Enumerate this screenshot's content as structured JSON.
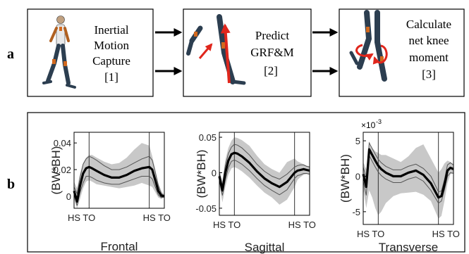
{
  "panel_a": {
    "label": "a",
    "steps": [
      {
        "lines": [
          "Inertial",
          "Motion",
          "Capture",
          "[1]"
        ]
      },
      {
        "lines": [
          "Predict",
          "GRF&M",
          "[2]"
        ]
      },
      {
        "lines": [
          "Calculate",
          "net knee",
          "moment",
          "[3]"
        ]
      }
    ]
  },
  "panel_b": {
    "label": "b",
    "ylabel": "(BW*BH)",
    "multiplier": "×10",
    "multiplier_exp": "-3"
  },
  "colors": {
    "mean_line": "#000000",
    "sd_line": "#555555",
    "shade": "#c8c8c8",
    "arrow_red": "#e0261c",
    "segment_orange": "#d2691e",
    "segment_dark": "#2c3e50"
  },
  "chart_data": [
    {
      "type": "line",
      "title": "Frontal",
      "ylabel": "(BW*BH)",
      "yticks": [
        "0.04",
        "0.02",
        "0"
      ],
      "ytick_values": [
        0.04,
        0.02,
        0
      ],
      "ylim": [
        -0.009,
        0.048
      ],
      "xticks": [
        "HS",
        "TO",
        "HS",
        "TO"
      ],
      "xtick_positions": [
        0,
        20,
        100,
        120
      ],
      "xlim": [
        0,
        120
      ],
      "vlines": [
        20,
        100
      ],
      "x": [
        0,
        4,
        8,
        12,
        16,
        20,
        24,
        30,
        40,
        50,
        60,
        70,
        80,
        90,
        100,
        104,
        108,
        112,
        116,
        120
      ],
      "series": [
        {
          "values": [
            0.004,
            -0.004,
            0.008,
            0.017,
            0.021,
            0.022,
            0.021,
            0.019,
            0.016,
            0.014,
            0.014,
            0.016,
            0.019,
            0.021,
            0.022,
            0.02,
            0.012,
            0.004,
            0.0005,
            0.0
          ]
        },
        {
          "values": [
            0.007,
            0.002,
            0.014,
            0.024,
            0.028,
            0.03,
            0.029,
            0.027,
            0.023,
            0.02,
            0.02,
            0.022,
            0.025,
            0.028,
            0.03,
            0.027,
            0.018,
            0.008,
            0.002,
            0.0005
          ]
        },
        {
          "values": [
            0.001,
            -0.007,
            0.003,
            0.01,
            0.015,
            0.015,
            0.014,
            0.012,
            0.01,
            0.009,
            0.009,
            0.011,
            0.013,
            0.015,
            0.015,
            0.013,
            0.007,
            0.001,
            -0.001,
            -0.0005
          ]
        },
        {
          "values": [
            0.011,
            0.006,
            0.017,
            0.025,
            0.029,
            0.031,
            0.031,
            0.029,
            0.026,
            0.024,
            0.025,
            0.029,
            0.035,
            0.04,
            0.038,
            0.03,
            0.02,
            0.01,
            0.004,
            0.001
          ]
        },
        {
          "values": [
            -0.002,
            -0.009,
            -0.002,
            0.006,
            0.011,
            0.012,
            0.011,
            0.009,
            0.008,
            0.007,
            0.006,
            0.007,
            0.008,
            0.01,
            0.008,
            0.007,
            0.003,
            -0.001,
            -0.002,
            -0.001
          ]
        }
      ]
    },
    {
      "type": "line",
      "title": "Sagittal",
      "ylabel": "(BW*BH)",
      "yticks": [
        "0.05",
        "0",
        "-0.05"
      ],
      "ytick_values": [
        0.05,
        0,
        -0.05
      ],
      "ylim": [
        -0.06,
        0.057
      ],
      "xticks": [
        "HS",
        "TO",
        "HS",
        "TO"
      ],
      "xtick_positions": [
        0,
        20,
        100,
        120
      ],
      "xlim": [
        0,
        120
      ],
      "vlines": [
        20,
        100
      ],
      "x": [
        0,
        4,
        8,
        12,
        16,
        20,
        24,
        30,
        40,
        50,
        60,
        70,
        80,
        90,
        100,
        104,
        108,
        112,
        116,
        120
      ],
      "series": [
        {
          "values": [
            -0.005,
            -0.025,
            0.0,
            0.017,
            0.026,
            0.028,
            0.027,
            0.023,
            0.014,
            0.002,
            -0.008,
            -0.015,
            -0.02,
            -0.013,
            0.0,
            0.003,
            0.004,
            0.005,
            0.004,
            0.003
          ]
        },
        {
          "values": [
            0.0,
            -0.018,
            0.01,
            0.027,
            0.036,
            0.04,
            0.039,
            0.035,
            0.025,
            0.012,
            0.002,
            -0.005,
            -0.009,
            -0.002,
            0.008,
            0.01,
            0.011,
            0.011,
            0.009,
            0.008
          ]
        },
        {
          "values": [
            -0.01,
            -0.032,
            -0.01,
            0.007,
            0.016,
            0.018,
            0.016,
            0.012,
            0.003,
            -0.008,
            -0.018,
            -0.025,
            -0.031,
            -0.024,
            -0.008,
            -0.004,
            -0.003,
            -0.001,
            -0.001,
            -0.002
          ]
        },
        {
          "values": [
            0.005,
            -0.012,
            0.018,
            0.035,
            0.045,
            0.05,
            0.049,
            0.046,
            0.038,
            0.024,
            0.012,
            0.005,
            0.0,
            0.015,
            0.02,
            0.016,
            0.014,
            0.012,
            0.01,
            0.009
          ]
        },
        {
          "values": [
            -0.015,
            -0.042,
            -0.02,
            -0.003,
            0.006,
            0.008,
            0.006,
            0.002,
            -0.007,
            -0.018,
            -0.028,
            -0.035,
            -0.045,
            -0.038,
            -0.02,
            -0.01,
            -0.006,
            -0.003,
            -0.002,
            -0.003
          ]
        }
      ]
    },
    {
      "type": "line",
      "title": "Transverse",
      "ylabel": "(BW*BH)",
      "yticks": [
        "5",
        "0",
        "-5"
      ],
      "ytick_values": [
        5,
        0,
        -5
      ],
      "ylim": [
        -6.8,
        6.2
      ],
      "xticks": [
        "HS",
        "TO",
        "HS",
        "TO"
      ],
      "xtick_positions": [
        0,
        20,
        100,
        120
      ],
      "xlim": [
        0,
        120
      ],
      "vlines": [
        20,
        100
      ],
      "x": [
        0,
        4,
        8,
        12,
        16,
        20,
        24,
        30,
        40,
        50,
        60,
        70,
        80,
        90,
        100,
        104,
        108,
        112,
        116,
        120
      ],
      "series": [
        {
          "values": [
            0.3,
            -1.5,
            3.8,
            3.0,
            2.2,
            1.5,
            1.0,
            0.5,
            0.0,
            0.0,
            0.5,
            0.8,
            0.2,
            -1.0,
            -3.0,
            -2.8,
            -1.2,
            0.8,
            1.2,
            1.0
          ]
        },
        {
          "values": [
            1.3,
            -0.3,
            4.7,
            3.9,
            3.1,
            2.4,
            1.9,
            1.4,
            0.9,
            0.9,
            1.4,
            1.7,
            1.1,
            0.0,
            -2.2,
            -2.1,
            -0.5,
            1.6,
            1.9,
            1.6
          ]
        },
        {
          "values": [
            -0.7,
            -2.7,
            2.9,
            2.1,
            1.3,
            0.6,
            0.1,
            -0.4,
            -0.9,
            -0.9,
            -0.4,
            -0.1,
            -0.7,
            -2.0,
            -3.8,
            -3.5,
            -1.9,
            0.0,
            0.5,
            0.4
          ]
        },
        {
          "values": [
            2.0,
            1.0,
            4.5,
            4.0,
            3.5,
            3.3,
            3.0,
            3.0,
            2.5,
            2.0,
            2.8,
            4.0,
            4.5,
            2.5,
            0.5,
            1.0,
            1.8,
            2.2,
            2.0,
            1.6
          ]
        },
        {
          "values": [
            -1.8,
            -4.5,
            -2.0,
            -3.0,
            -4.5,
            -5.5,
            -5.0,
            -3.8,
            -2.8,
            -2.4,
            -2.3,
            -2.2,
            -2.6,
            -3.5,
            -6.0,
            -5.6,
            -3.5,
            -1.0,
            0.3,
            0.4
          ]
        }
      ]
    }
  ]
}
